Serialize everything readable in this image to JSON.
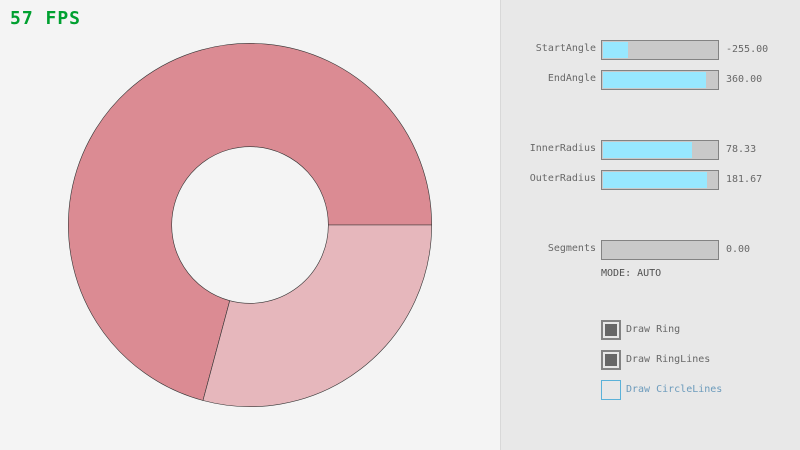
{
  "fps": "57 FPS",
  "colors": {
    "ring_dark": "#db8b93",
    "ring_light": "#e6b7bc",
    "fps": "#00a030",
    "slider_fill": "#97e8ff"
  },
  "ring": {
    "center": "screen-center-left",
    "inner_radius": 78.33,
    "outer_radius": 181.67,
    "start_angle": -255,
    "end_angle": 360
  },
  "sliders": [
    {
      "label": "StartAngle",
      "value": "-255.00",
      "fraction": 0.217
    },
    {
      "label": "EndAngle",
      "value": "360.00",
      "fraction": 0.9
    },
    {
      "label": "InnerRadius",
      "value": "78.33",
      "fraction": 0.783
    },
    {
      "label": "OuterRadius",
      "value": "181.67",
      "fraction": 0.908
    },
    {
      "label": "Segments",
      "value": "0.00",
      "fraction": 0
    }
  ],
  "mode": "MODE: AUTO",
  "checkboxes": [
    {
      "label": "Draw Ring",
      "checked": true
    },
    {
      "label": "Draw RingLines",
      "checked": true
    },
    {
      "label": "Draw CircleLines",
      "checked": false
    }
  ]
}
